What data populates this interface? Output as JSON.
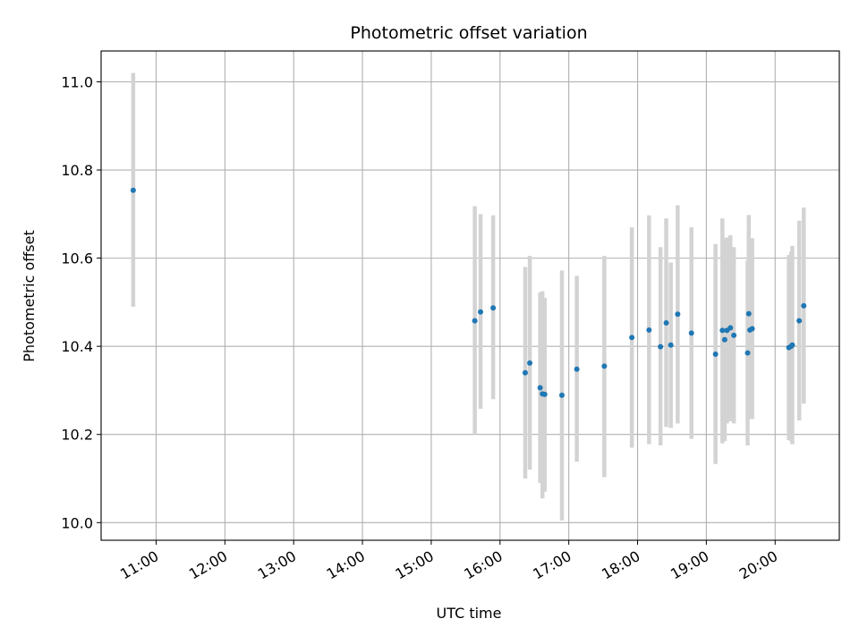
{
  "chart_data": {
    "type": "scatter",
    "title": "Photometric offset variation",
    "xlabel": "UTC time",
    "ylabel": "Photometric offset",
    "x_is_time": true,
    "xlim": [
      "10:12",
      "20:56"
    ],
    "ylim": [
      9.96,
      11.07
    ],
    "x_ticks": [
      "11:00",
      "12:00",
      "13:00",
      "14:00",
      "15:00",
      "16:00",
      "17:00",
      "18:00",
      "19:00",
      "20:00"
    ],
    "y_ticks": [
      "10.0",
      "10.2",
      "10.4",
      "10.6",
      "10.8",
      "11.0"
    ],
    "y_tick_values": [
      10.0,
      10.2,
      10.4,
      10.6,
      10.8,
      11.0
    ],
    "grid": true,
    "colors": {
      "point": "#1f77b4",
      "errorbar": "#d3d3d3",
      "grid": "#b0b0b0",
      "axes": "#000000"
    },
    "points": [
      {
        "x": "10:40",
        "y": 10.754,
        "low": 10.49,
        "high": 11.02
      },
      {
        "x": "15:38",
        "y": 10.458,
        "low": 10.2,
        "high": 10.718
      },
      {
        "x": "15:43",
        "y": 10.478,
        "low": 10.258,
        "high": 10.7
      },
      {
        "x": "15:54",
        "y": 10.487,
        "low": 10.28,
        "high": 10.697
      },
      {
        "x": "16:22",
        "y": 10.34,
        "low": 10.1,
        "high": 10.58
      },
      {
        "x": "16:26",
        "y": 10.362,
        "low": 10.12,
        "high": 10.605
      },
      {
        "x": "16:35",
        "y": 10.306,
        "low": 10.09,
        "high": 10.522
      },
      {
        "x": "16:37",
        "y": 10.292,
        "low": 10.055,
        "high": 10.525
      },
      {
        "x": "16:39",
        "y": 10.291,
        "low": 10.07,
        "high": 10.51
      },
      {
        "x": "16:54",
        "y": 10.289,
        "low": 10.005,
        "high": 10.572
      },
      {
        "x": "17:07",
        "y": 10.348,
        "low": 10.138,
        "high": 10.56
      },
      {
        "x": "17:31",
        "y": 10.355,
        "low": 10.103,
        "high": 10.605
      },
      {
        "x": "17:55",
        "y": 10.42,
        "low": 10.17,
        "high": 10.67
      },
      {
        "x": "18:10",
        "y": 10.437,
        "low": 10.178,
        "high": 10.697
      },
      {
        "x": "18:20",
        "y": 10.399,
        "low": 10.175,
        "high": 10.625
      },
      {
        "x": "18:25",
        "y": 10.453,
        "low": 10.217,
        "high": 10.69
      },
      {
        "x": "18:29",
        "y": 10.403,
        "low": 10.215,
        "high": 10.59
      },
      {
        "x": "18:35",
        "y": 10.473,
        "low": 10.225,
        "high": 10.72
      },
      {
        "x": "18:47",
        "y": 10.43,
        "low": 10.19,
        "high": 10.67
      },
      {
        "x": "19:08",
        "y": 10.382,
        "low": 10.133,
        "high": 10.632
      },
      {
        "x": "19:14",
        "y": 10.436,
        "low": 10.18,
        "high": 10.69
      },
      {
        "x": "19:16",
        "y": 10.415,
        "low": 10.185,
        "high": 10.645
      },
      {
        "x": "19:18",
        "y": 10.436,
        "low": 10.225,
        "high": 10.647
      },
      {
        "x": "19:21",
        "y": 10.442,
        "low": 10.23,
        "high": 10.652
      },
      {
        "x": "19:24",
        "y": 10.425,
        "low": 10.225,
        "high": 10.625
      },
      {
        "x": "19:36",
        "y": 10.385,
        "low": 10.175,
        "high": 10.595
      },
      {
        "x": "19:37",
        "y": 10.474,
        "low": 10.25,
        "high": 10.698
      },
      {
        "x": "19:38",
        "y": 10.437,
        "low": 10.235,
        "high": 10.64
      },
      {
        "x": "19:40",
        "y": 10.44,
        "low": 10.235,
        "high": 10.645
      },
      {
        "x": "20:12",
        "y": 10.397,
        "low": 10.187,
        "high": 10.607
      },
      {
        "x": "20:14",
        "y": 10.4,
        "low": 10.185,
        "high": 10.615
      },
      {
        "x": "20:15",
        "y": 10.403,
        "low": 10.178,
        "high": 10.628
      },
      {
        "x": "20:21",
        "y": 10.458,
        "low": 10.232,
        "high": 10.685
      },
      {
        "x": "20:25",
        "y": 10.492,
        "low": 10.27,
        "high": 10.715
      }
    ]
  }
}
